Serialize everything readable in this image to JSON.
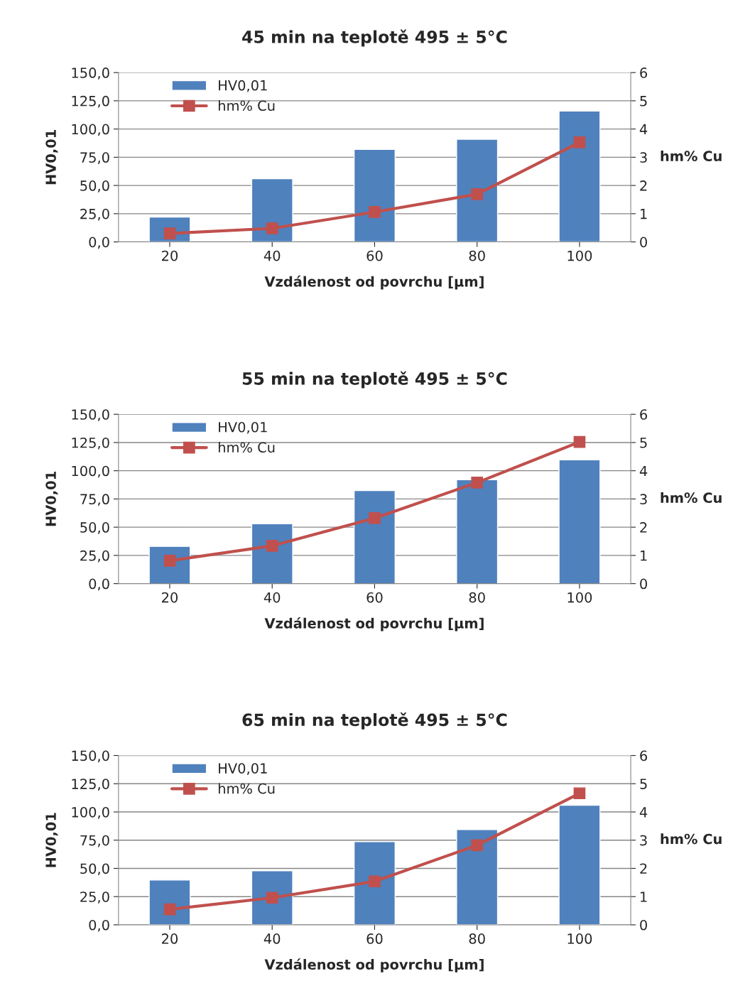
{
  "chart_data": [
    {
      "type": "bar",
      "title": "45 min na teplotě 495 ± 5°C",
      "xlabel": "Vzdálenost od povrchu [µm]",
      "ylabel": "HV0,01",
      "y2label": "hm% Cu",
      "categories": [
        "20",
        "40",
        "60",
        "80",
        "100"
      ],
      "series": [
        {
          "name": "HV0,01",
          "color": "#4f81bd",
          "values": [
            22,
            56,
            82,
            91,
            116
          ]
        },
        {
          "name": "hm% Cu",
          "type": "line",
          "axis": "y2",
          "color": "#c0504d",
          "marker": "square",
          "line_style": "solid",
          "values": [
            0.3,
            0.48,
            1.06,
            1.69,
            3.53
          ]
        }
      ],
      "ylim": [
        0,
        150
      ],
      "yticks": [
        {
          "value": 0,
          "label": "0,0"
        },
        {
          "value": 25,
          "label": "25,0"
        },
        {
          "value": 50,
          "label": "50,0"
        },
        {
          "value": 75,
          "label": "75,0"
        },
        {
          "value": 100,
          "label": "100,0"
        },
        {
          "value": 125,
          "label": "125,0"
        },
        {
          "value": 150,
          "label": "150,0"
        }
      ],
      "y2lim": [
        0,
        6
      ],
      "y2ticks": [
        0,
        1,
        2,
        3,
        4,
        5,
        6
      ],
      "grid": "y",
      "legend": "top left"
    },
    {
      "type": "bar",
      "title": "55 min na teplotě 495 ± 5°C",
      "xlabel": "Vzdálenost od povrchu [µm]",
      "ylabel": "HV0,01",
      "y2label": "hm% Cu",
      "categories": [
        "20",
        "40",
        "60",
        "80",
        "100"
      ],
      "series": [
        {
          "name": "HV0,01",
          "color": "#4f81bd",
          "values": [
            33,
            53,
            82.5,
            92,
            109.6
          ]
        },
        {
          "name": "hm% Cu",
          "type": "line",
          "axis": "y2",
          "color": "#c0504d",
          "marker": "square",
          "line_style": "solid",
          "values": [
            0.81,
            1.34,
            2.32,
            3.58,
            5.02
          ]
        }
      ],
      "ylim": [
        0,
        150
      ],
      "yticks": [
        {
          "value": 0,
          "label": "0,0"
        },
        {
          "value": 25,
          "label": "25,0"
        },
        {
          "value": 50,
          "label": "50,0"
        },
        {
          "value": 75,
          "label": "75,0"
        },
        {
          "value": 100,
          "label": "100,0"
        },
        {
          "value": 125,
          "label": "125,0"
        },
        {
          "value": 150,
          "label": "150,0"
        }
      ],
      "y2lim": [
        0,
        6
      ],
      "y2ticks": [
        0,
        1,
        2,
        3,
        4,
        5,
        6
      ],
      "grid": "y",
      "legend": "top left"
    },
    {
      "type": "bar",
      "title": "65 min na teplotě 495 ± 5°C",
      "xlabel": "Vzdálenost od povrchu [µm]",
      "ylabel": "HV0,01",
      "y2label": "hm% Cu",
      "categories": [
        "20",
        "40",
        "60",
        "80",
        "100"
      ],
      "series": [
        {
          "name": "HV0,01",
          "color": "#4f81bd",
          "values": [
            39.7,
            47.9,
            73.7,
            84.4,
            105.9
          ]
        },
        {
          "name": "hm% Cu",
          "type": "line",
          "axis": "y2",
          "color": "#c0504d",
          "marker": "square",
          "line_style": "solid",
          "values": [
            0.55,
            0.96,
            1.54,
            2.82,
            4.66
          ]
        }
      ],
      "ylim": [
        0,
        150
      ],
      "yticks": [
        {
          "value": 0,
          "label": "0,0"
        },
        {
          "value": 25,
          "label": "25,0"
        },
        {
          "value": 50,
          "label": "50,0"
        },
        {
          "value": 75,
          "label": "75,0"
        },
        {
          "value": 100,
          "label": "100,0"
        },
        {
          "value": 125,
          "label": "125,0"
        },
        {
          "value": 150,
          "label": "150,0"
        }
      ],
      "y2lim": [
        0,
        6
      ],
      "y2ticks": [
        0,
        1,
        2,
        3,
        4,
        5,
        6
      ],
      "grid": "y",
      "legend": "top left"
    }
  ]
}
